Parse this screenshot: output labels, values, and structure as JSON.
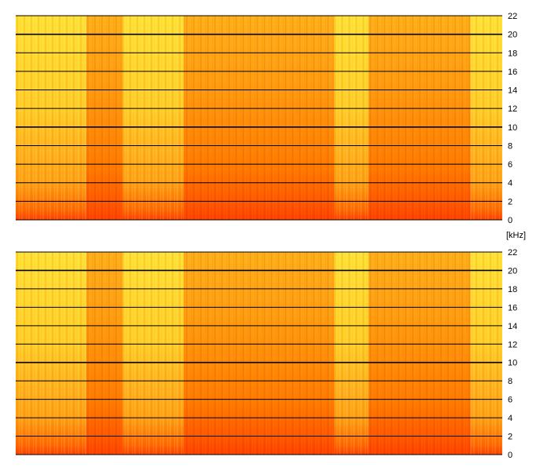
{
  "chart_data": [
    {
      "type": "heatmap",
      "name": "spectrogram-channel-1",
      "y_unit": "[kHz]",
      "ylim": [
        0,
        22
      ],
      "y_ticks": [
        "0",
        "2",
        "4",
        "6",
        "8",
        "10",
        "12",
        "14",
        "16",
        "18",
        "20",
        "22"
      ],
      "grid": true,
      "colormap": [
        "#ff3f00",
        "#ff7a00",
        "#ffb21a",
        "#ffe030"
      ],
      "intensity_bands": [
        {
          "x_start": 0.0,
          "x_end": 0.145,
          "level": "low"
        },
        {
          "x_start": 0.145,
          "x_end": 0.22,
          "level": "high"
        },
        {
          "x_start": 0.22,
          "x_end": 0.345,
          "level": "low"
        },
        {
          "x_start": 0.345,
          "x_end": 0.655,
          "level": "high"
        },
        {
          "x_start": 0.655,
          "x_end": 0.725,
          "level": "low"
        },
        {
          "x_start": 0.725,
          "x_end": 0.935,
          "level": "high"
        },
        {
          "x_start": 0.935,
          "x_end": 1.0,
          "level": "low"
        }
      ]
    },
    {
      "type": "heatmap",
      "name": "spectrogram-channel-2",
      "y_unit": "[kHz]",
      "ylim": [
        0,
        22
      ],
      "y_ticks": [
        "0",
        "2",
        "4",
        "6",
        "8",
        "10",
        "12",
        "14",
        "16",
        "18",
        "20",
        "22"
      ],
      "grid": true,
      "colormap": [
        "#ff3f00",
        "#ff7a00",
        "#ffb21a",
        "#ffe030"
      ],
      "intensity_bands": [
        {
          "x_start": 0.0,
          "x_end": 0.145,
          "level": "low"
        },
        {
          "x_start": 0.145,
          "x_end": 0.22,
          "level": "high"
        },
        {
          "x_start": 0.22,
          "x_end": 0.345,
          "level": "low"
        },
        {
          "x_start": 0.345,
          "x_end": 0.655,
          "level": "high"
        },
        {
          "x_start": 0.655,
          "x_end": 0.725,
          "level": "low"
        },
        {
          "x_start": 0.725,
          "x_end": 0.935,
          "level": "high"
        },
        {
          "x_start": 0.935,
          "x_end": 1.0,
          "level": "low"
        }
      ]
    }
  ],
  "unit_label": "[kHz]"
}
